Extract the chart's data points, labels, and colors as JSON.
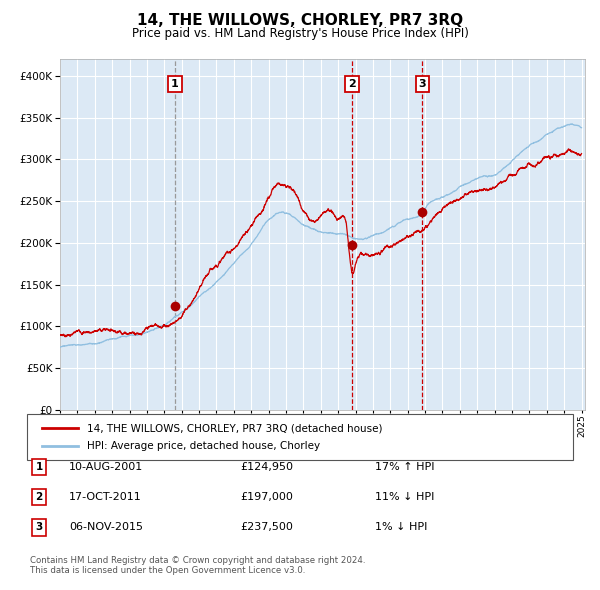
{
  "title": "14, THE WILLOWS, CHORLEY, PR7 3RQ",
  "subtitle": "Price paid vs. HM Land Registry's House Price Index (HPI)",
  "legend_line1": "14, THE WILLOWS, CHORLEY, PR7 3RQ (detached house)",
  "legend_line2": "HPI: Average price, detached house, Chorley",
  "transaction1_date": "10-AUG-2001",
  "transaction1_price": 124950,
  "transaction1_hpi": "17% ↑ HPI",
  "transaction1_year": 2001.6,
  "transaction2_date": "17-OCT-2011",
  "transaction2_price": 197000,
  "transaction2_hpi": "11% ↓ HPI",
  "transaction2_year": 2011.8,
  "transaction3_date": "06-NOV-2015",
  "transaction3_price": 237500,
  "transaction3_hpi": "1% ↓ HPI",
  "transaction3_year": 2015.85,
  "footnote": "Contains HM Land Registry data © Crown copyright and database right 2024.\nThis data is licensed under the Open Government Licence v3.0.",
  "ylim": [
    0,
    420000
  ],
  "xstart": 1995.0,
  "xend": 2025.2,
  "plot_bg": "#dce9f5",
  "grid_color": "#ffffff",
  "red_line_color": "#cc0000",
  "blue_line_color": "#90bfe0",
  "marker_color": "#aa0000",
  "vline1_color": "#999999",
  "vline23_color": "#cc0000"
}
